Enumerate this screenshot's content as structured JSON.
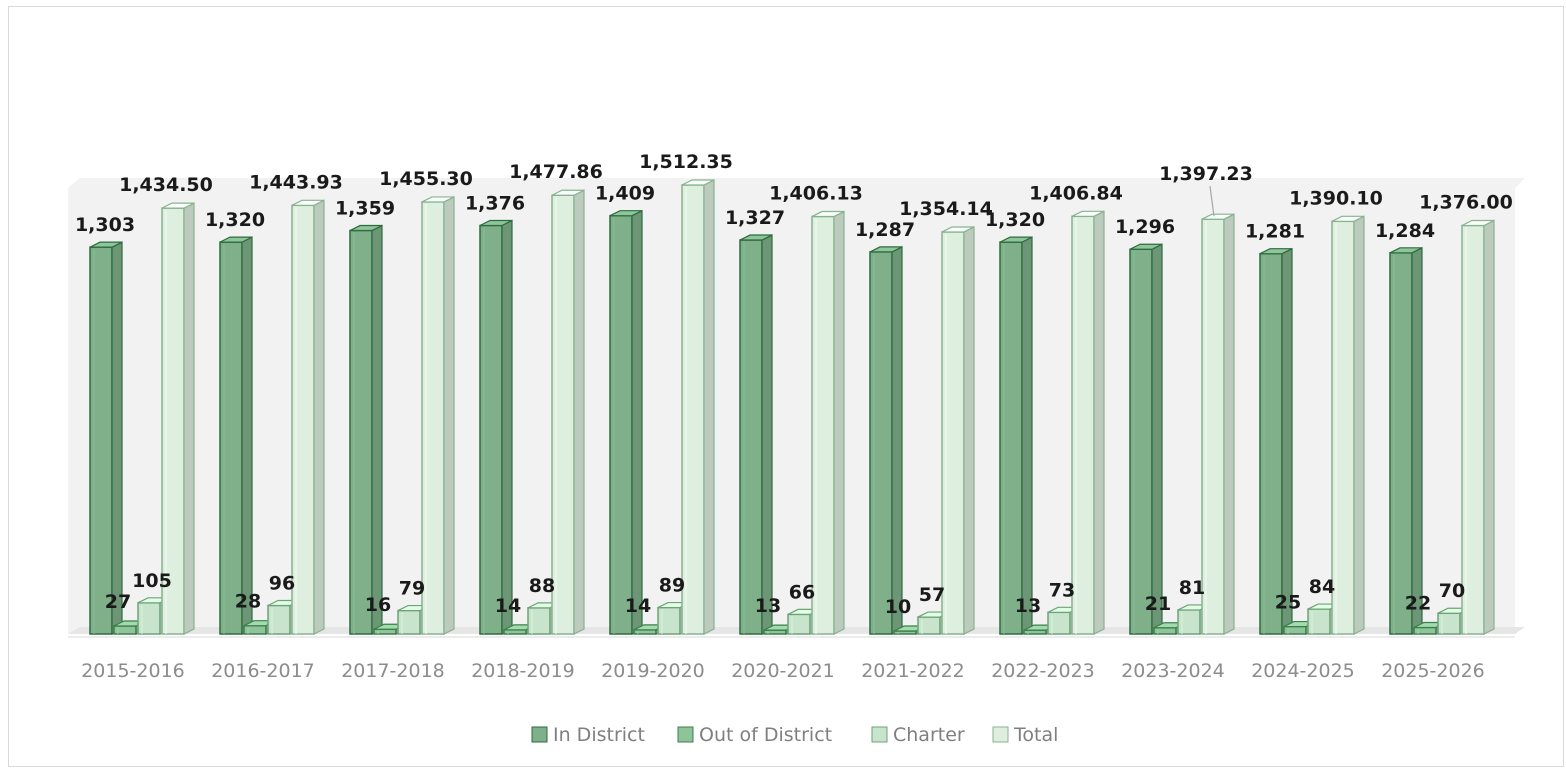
{
  "chart_data": {
    "type": "bar",
    "style": "3d-clustered-column",
    "title": "",
    "xlabel": "",
    "ylabel": "",
    "ylim": [
      0,
      1512.35
    ],
    "grid": false,
    "legend_position": "bottom",
    "categories": [
      "2015-2016",
      "2016-2017",
      "2017-2018",
      "2018-2019",
      "2019-2020",
      "2020-2021",
      "2021-2022",
      "2022-2023",
      "2023-2024",
      "2024-2025",
      "2025-2026"
    ],
    "series": [
      {
        "name": "In District",
        "values": [
          1303,
          1320,
          1359,
          1376,
          1409,
          1327,
          1287,
          1320,
          1296,
          1281,
          1284
        ],
        "labels": [
          "1,303",
          "1,320",
          "1,359",
          "1,376",
          "1,409",
          "1,327",
          "1,287",
          "1,320",
          "1,296",
          "1,281",
          "1,284"
        ],
        "color": "#7fb08a",
        "edge": "#2e6b3e"
      },
      {
        "name": "Out of District",
        "values": [
          27,
          28,
          16,
          14,
          14,
          13,
          10,
          13,
          21,
          25,
          22
        ],
        "labels": [
          "27",
          "28",
          "16",
          "14",
          "14",
          "13",
          "10",
          "13",
          "21",
          "25",
          "22"
        ],
        "color": "#8fc49a",
        "edge": "#3f7d4d"
      },
      {
        "name": "Charter",
        "values": [
          105,
          96,
          79,
          88,
          89,
          66,
          57,
          73,
          81,
          84,
          70
        ],
        "labels": [
          "105",
          "96",
          "79",
          "88",
          "89",
          "66",
          "57",
          "73",
          "81",
          "84",
          "70"
        ],
        "color": "#c8e4cc",
        "edge": "#6fa27a"
      },
      {
        "name": "Total",
        "values": [
          1434.5,
          1443.93,
          1455.3,
          1477.86,
          1512.35,
          1406.13,
          1354.14,
          1406.84,
          1397.23,
          1390.1,
          1376.0
        ],
        "labels": [
          "1,434.50",
          "1,443.93",
          "1,455.30",
          "1,477.86",
          "1,512.35",
          "1,406.13",
          "1,354.14",
          "1,406.84",
          "1,397.23",
          "1,390.10",
          "1,376.00"
        ],
        "color": "#deeedf",
        "edge": "#88b290"
      }
    ]
  }
}
